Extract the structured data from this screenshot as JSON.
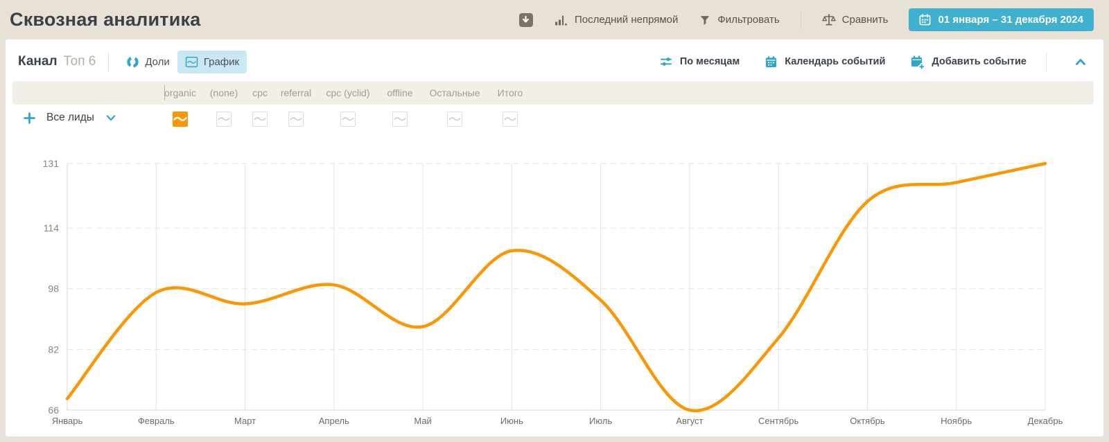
{
  "page": {
    "title": "Сквозная аналитика"
  },
  "topbar": {
    "export_icon": "download-icon",
    "attribution_label": "Последний непрямой",
    "filter_label": "Фильтровать",
    "compare_label": "Сравнить",
    "date_range": "01 января – 31 декабря 2024"
  },
  "panel": {
    "title": "Канал",
    "subtitle": "Топ 6",
    "shares_label": "Доли",
    "chart_label": "График",
    "by_months_label": "По месяцам",
    "events_calendar_label": "Календарь событий",
    "add_event_label": "Добавить событие",
    "series_selector_label": "Все лиды",
    "channels": [
      "organic",
      "(none)",
      "cpc",
      "referral",
      "cpc (yclid)",
      "offline",
      "Остальные",
      "Итого"
    ],
    "active_channel_index": 0
  },
  "colors": {
    "background": "#E8E1D6",
    "card": "#FFFFFF",
    "accent_teal": "#3FB1CE",
    "icon_teal": "#2EA7C9",
    "selected_chip": "#CBE7F1",
    "line_orange": "#FA9706",
    "band": "#F1EFE8",
    "olive_icon": "#6E6958"
  },
  "chart_data": {
    "type": "line",
    "title": "",
    "xlabel": "",
    "ylabel": "",
    "categories": [
      "Январь",
      "Февраль",
      "Март",
      "Апрель",
      "Май",
      "Июнь",
      "Июль",
      "Август",
      "Сентябрь",
      "Октябрь",
      "Ноябрь",
      "Декабрь"
    ],
    "series": [
      {
        "name": "Все лиды — organic",
        "values": [
          69,
          97,
          94,
          99,
          88,
          108,
          95,
          66,
          85,
          121,
          126,
          131
        ]
      }
    ],
    "ylim": [
      66,
      131
    ],
    "yticks": [
      66,
      82,
      98,
      114,
      131
    ],
    "smooth": true,
    "line_color": "#FA9706",
    "grid": {
      "vertical": "solid",
      "horizontal": "dashed",
      "legend": "none"
    }
  }
}
